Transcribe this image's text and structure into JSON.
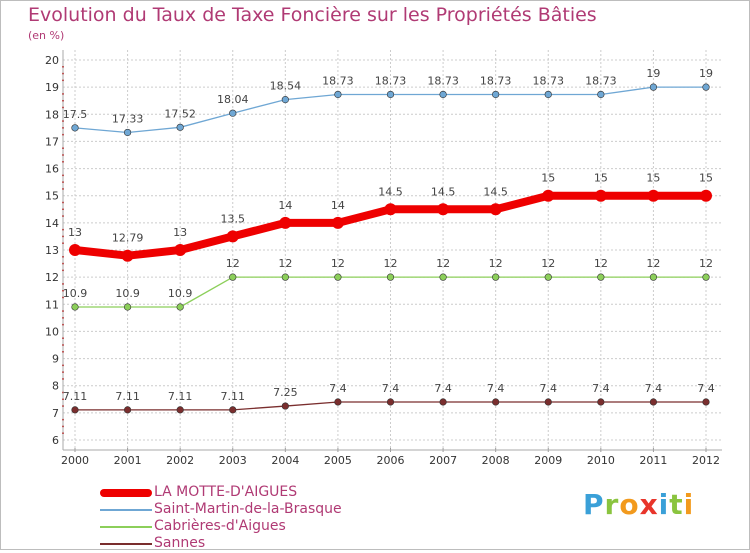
{
  "title": "Evolution du Taux de Taxe Foncière sur les Propriétés Bâties",
  "subtitle": "(en %)",
  "logo": {
    "text": "Proxiti",
    "letters": [
      {
        "ch": "P",
        "color": "#3aa0d8"
      },
      {
        "ch": "r",
        "color": "#8ac43f"
      },
      {
        "ch": "o",
        "color": "#f29a1d"
      },
      {
        "ch": "x",
        "color": "#e8352b"
      },
      {
        "ch": "i",
        "color": "#3aa0d8"
      },
      {
        "ch": "t",
        "color": "#8ac43f"
      },
      {
        "ch": "i",
        "color": "#f29a1d"
      }
    ]
  },
  "chart_data": {
    "type": "line",
    "title": "Evolution du Taux de Taxe Foncière sur les Propriétés Bâties",
    "ylabel": "(en %)",
    "xlabel": "",
    "x": [
      "2000",
      "2001",
      "2002",
      "2003",
      "2004",
      "2005",
      "2006",
      "2007",
      "2008",
      "2009",
      "2010",
      "2011",
      "2012"
    ],
    "ylim": [
      6,
      20
    ],
    "yticks": [
      "6",
      "7",
      "8",
      "9",
      "10",
      "11",
      "12",
      "13",
      "14",
      "15",
      "16",
      "17",
      "18",
      "19",
      "20"
    ],
    "grid": true,
    "legend_position": "bottom-left",
    "series": [
      {
        "name": "LA MOTTE-D'AIGUES",
        "color": "#ee0000",
        "emphasis": true,
        "values": [
          13,
          12.79,
          13,
          13.5,
          14,
          14,
          14.5,
          14.5,
          14.5,
          15,
          15,
          15,
          15
        ],
        "labels": [
          "13",
          "12.79",
          "13",
          "13.5",
          "14",
          "14",
          "14.5",
          "14.5",
          "14.5",
          "15",
          "15",
          "15",
          "15"
        ]
      },
      {
        "name": "Saint-Martin-de-la-Brasque",
        "color": "#6fa7d4",
        "values": [
          17.5,
          17.33,
          17.52,
          18.04,
          18.54,
          18.73,
          18.73,
          18.73,
          18.73,
          18.73,
          18.73,
          19,
          19
        ],
        "labels": [
          "17.5",
          "17.33",
          "17.52",
          "18.04",
          "18.54",
          "18.73",
          "18.73",
          "18.73",
          "18.73",
          "18.73",
          "18.73",
          "19",
          "19"
        ]
      },
      {
        "name": "Cabrières-d'Aigues",
        "color": "#8ccf5a",
        "values": [
          10.9,
          10.9,
          10.9,
          12,
          12,
          12,
          12,
          12,
          12,
          12,
          12,
          12,
          12
        ],
        "labels": [
          "10.9",
          "10.9",
          "10.9",
          "12",
          "12",
          "12",
          "12",
          "12",
          "12",
          "12",
          "12",
          "12",
          "12"
        ]
      },
      {
        "name": "Sannes",
        "color": "#7a2e2e",
        "values": [
          7.11,
          7.11,
          7.11,
          7.11,
          7.25,
          7.4,
          7.4,
          7.4,
          7.4,
          7.4,
          7.4,
          7.4,
          7.4
        ],
        "labels": [
          "7.11",
          "7.11",
          "7.11",
          "7.11",
          "7.25",
          "7.4",
          "7.4",
          "7.4",
          "7.4",
          "7.4",
          "7.4",
          "7.4",
          "7.4"
        ]
      }
    ]
  }
}
